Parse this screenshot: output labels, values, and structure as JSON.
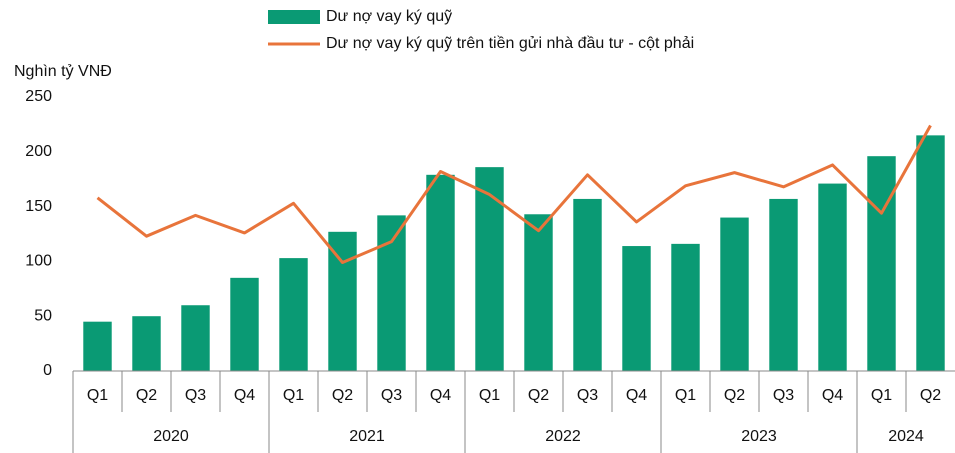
{
  "chart_data": {
    "type": "bar_line",
    "y_axis_title": "Nghìn tỷ VNĐ",
    "categories": [
      "Q1",
      "Q2",
      "Q3",
      "Q4",
      "Q1",
      "Q2",
      "Q3",
      "Q4",
      "Q1",
      "Q2",
      "Q3",
      "Q4",
      "Q1",
      "Q2",
      "Q3",
      "Q4",
      "Q1",
      "Q2"
    ],
    "year_labels": [
      "2020",
      "2021",
      "2022",
      "2023",
      "2024"
    ],
    "series": [
      {
        "name": "Dư nợ vay ký quỹ",
        "type": "bar",
        "color": "#0a9a74",
        "values": [
          45,
          50,
          60,
          85,
          103,
          127,
          142,
          179,
          186,
          143,
          157,
          114,
          116,
          140,
          157,
          171,
          196,
          215
        ]
      },
      {
        "name": "Dư nợ vay ký quỹ trên tiền gửi nhà đầu tư - cột phải",
        "type": "line",
        "color": "#e8743b",
        "values": [
          158,
          123,
          142,
          126,
          153,
          99,
          118,
          182,
          161,
          128,
          179,
          136,
          169,
          181,
          168,
          188,
          144,
          224
        ]
      }
    ],
    "ylim": [
      0,
      250
    ],
    "yticks": [
      0,
      50,
      100,
      150,
      200,
      250
    ]
  }
}
